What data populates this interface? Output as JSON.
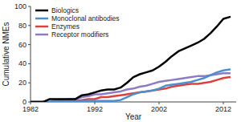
{
  "chart_data": {
    "type": "line",
    "x_label": "Year",
    "y_label": "Cumulative NMEs",
    "x": [
      1982,
      1983,
      1984,
      1985,
      1986,
      1987,
      1988,
      1989,
      1990,
      1991,
      1992,
      1993,
      1994,
      1995,
      1996,
      1997,
      1998,
      1999,
      2000,
      2001,
      2002,
      2003,
      2004,
      2005,
      2006,
      2007,
      2008,
      2009,
      2010,
      2011,
      2012,
      2013
    ],
    "series": [
      {
        "name": "Biologics",
        "color": "#000000",
        "values": [
          0,
          0,
          0,
          3,
          3,
          3,
          3,
          3,
          7,
          8,
          10,
          12,
          13,
          13,
          15,
          20,
          26,
          29,
          31,
          33,
          37,
          42,
          48,
          53,
          56,
          59,
          62,
          66,
          72,
          79,
          87,
          89
        ]
      },
      {
        "name": "Monoclonal antibodies",
        "color": "#4a90d0",
        "values": [
          0,
          0,
          0,
          0,
          1,
          1,
          1,
          1,
          1,
          1,
          1,
          1,
          1,
          1,
          2,
          5,
          8,
          10,
          11,
          12,
          14,
          17,
          18,
          19,
          20,
          21,
          23,
          25,
          28,
          31,
          33,
          34
        ]
      },
      {
        "name": "Enzymes",
        "color": "#e0403c",
        "values": [
          0,
          0,
          0,
          0,
          0,
          1,
          1,
          1,
          2,
          3,
          3,
          5,
          5,
          6,
          7,
          8,
          9,
          10,
          11,
          12,
          13,
          14,
          16,
          17,
          18,
          19,
          19,
          20,
          21,
          23,
          25,
          26
        ]
      },
      {
        "name": "Receptor modifiers",
        "color": "#8e7cc3",
        "values": [
          0,
          0,
          0,
          0,
          2,
          2,
          3,
          3,
          5,
          6,
          8,
          8,
          9,
          10,
          11,
          13,
          14,
          16,
          17,
          19,
          21,
          22,
          23,
          24,
          25,
          26,
          27,
          27,
          28,
          29,
          30,
          30
        ]
      }
    ],
    "xlim": [
      1982,
      2014
    ],
    "xticks": [
      1982,
      1992,
      2002,
      2012
    ],
    "ylim": [
      0,
      100
    ],
    "yticks": [
      0,
      20,
      40,
      60,
      80,
      100
    ],
    "grid": false,
    "legend": "upper left"
  }
}
